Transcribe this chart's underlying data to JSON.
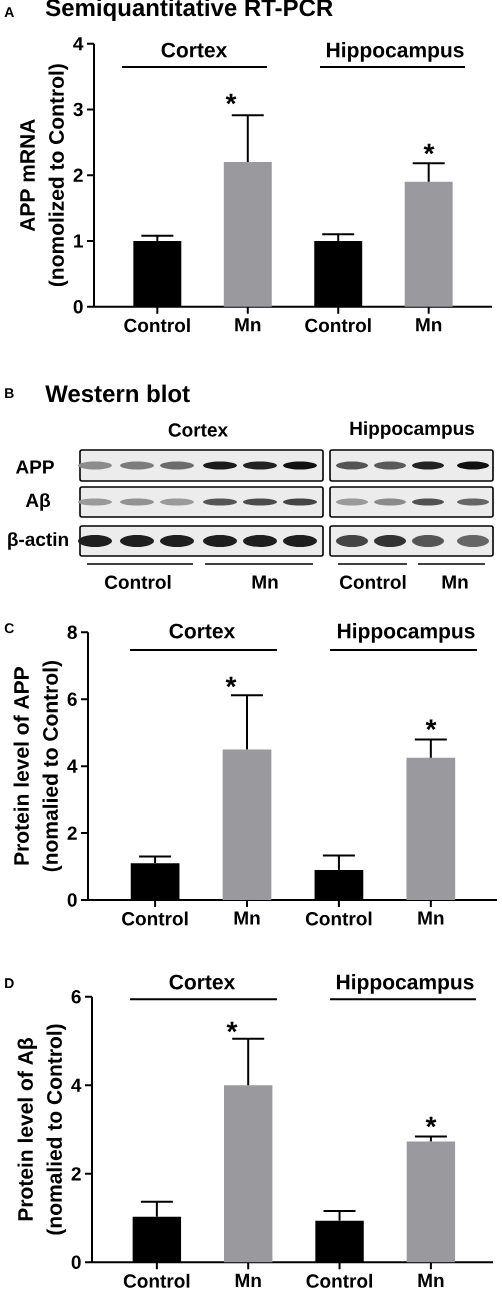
{
  "chart_data": [
    {
      "type": "bar",
      "title": "Semiquantitative RT-PCR",
      "ylabel": "APP mRNA\n(nomolized to Control)",
      "categories": [
        "Control",
        "Mn",
        "Control",
        "Mn"
      ],
      "values": [
        1.0,
        2.2,
        1.0,
        1.9
      ],
      "colors": [
        "#000000",
        "#9a9a9e",
        "#000000",
        "#9a9a9e"
      ],
      "errors": [
        [
          1.0,
          1.08
        ],
        [
          2.2,
          2.91
        ],
        [
          1.0,
          1.1
        ],
        [
          1.9,
          2.18
        ]
      ],
      "ylim": [
        0,
        4
      ],
      "yticks": [
        0,
        1,
        2,
        3,
        4
      ],
      "annotations": [
        "A",
        "Cortex",
        "Hippocampus",
        "*",
        "*"
      ]
    },
    {
      "type": "other",
      "title": "Western blot",
      "annotations": [
        "B",
        "Cortex",
        "Hippocampus",
        "APP",
        "Aβ",
        "β-actin",
        "Control",
        "Mn",
        "Control",
        "Mn"
      ]
    },
    {
      "type": "bar",
      "ylabel": "Protein level of APP\n(nomalied to Control)",
      "categories": [
        "Control",
        "Mn",
        "Control",
        "Mn"
      ],
      "values": [
        1.1,
        4.5,
        0.9,
        4.25
      ],
      "colors": [
        "#000000",
        "#9a9a9e",
        "#000000",
        "#9a9a9e"
      ],
      "errors": [
        [
          1.1,
          1.3
        ],
        [
          4.5,
          6.12
        ],
        [
          0.9,
          1.33
        ],
        [
          4.25,
          4.8
        ]
      ],
      "ylim": [
        0,
        8
      ],
      "yticks": [
        0,
        2,
        4,
        6,
        8
      ],
      "annotations": [
        "C",
        "Cortex",
        "Hippocampus",
        "*",
        "*"
      ]
    },
    {
      "type": "bar",
      "ylabel": "Protein level of Aβ\n(nomalied to Control)",
      "categories": [
        "Control",
        "Mn",
        "Control",
        "Mn"
      ],
      "values": [
        1.03,
        4.0,
        0.94,
        2.73
      ],
      "colors": [
        "#000000",
        "#9a9a9e",
        "#000000",
        "#9a9a9e"
      ],
      "errors": [
        [
          1.03,
          1.37
        ],
        [
          4.0,
          5.05
        ],
        [
          0.94,
          1.16
        ],
        [
          2.73,
          2.84
        ]
      ],
      "ylim": [
        0,
        6
      ],
      "yticks": [
        0,
        2,
        4,
        6
      ],
      "annotations": [
        "D",
        "Cortex",
        "Hippocampus",
        "*",
        "*"
      ]
    }
  ]
}
